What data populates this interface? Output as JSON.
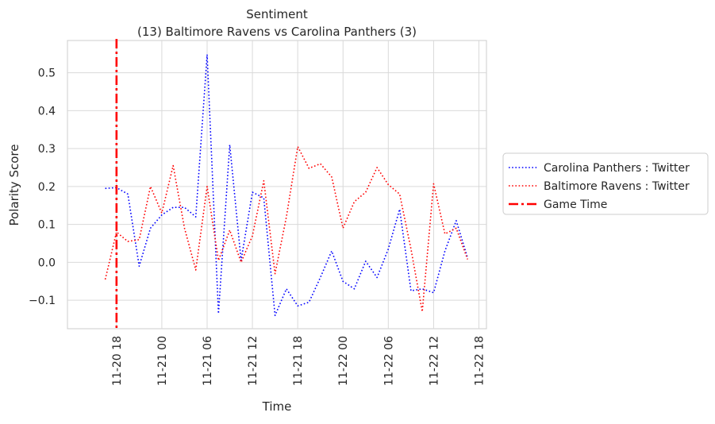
{
  "chart_data": {
    "type": "line",
    "title": "Sentiment",
    "subtitle": "(13) Baltimore Ravens vs Carolina Panthers (3)",
    "xlabel": "Time",
    "ylabel": "Polarity Score",
    "grid": true,
    "legend_position": "right-outside",
    "x_ticks": [
      "11-20 18",
      "11-21 00",
      "11-21 06",
      "11-21 12",
      "11-21 18",
      "11-22 00",
      "11-22 06",
      "11-22 12",
      "11-22 18"
    ],
    "y_ticks": [
      "−0.1",
      "0.0",
      "0.1",
      "0.2",
      "0.3",
      "0.4",
      "0.5"
    ],
    "y_tick_values": [
      -0.1,
      0.0,
      0.1,
      0.2,
      0.3,
      0.4,
      0.5
    ],
    "xlim": [
      "2018-11-20 11:30",
      "2018-11-22 19:00"
    ],
    "ylim": [
      -0.175,
      0.585
    ],
    "series": [
      {
        "name": "Carolina Panthers : Twitter",
        "color": "#0000ff",
        "style": "dotted",
        "points": [
          [
            "2018-11-20 16:30",
            0.195
          ],
          [
            "2018-11-20 18:00",
            0.197
          ],
          [
            "2018-11-20 19:30",
            0.18
          ],
          [
            "2018-11-20 21:00",
            -0.01
          ],
          [
            "2018-11-20 22:30",
            0.09
          ],
          [
            "2018-11-21 00:00",
            0.125
          ],
          [
            "2018-11-21 01:30",
            0.145
          ],
          [
            "2018-11-21 03:00",
            0.145
          ],
          [
            "2018-11-21 04:30",
            0.12
          ],
          [
            "2018-11-21 06:00",
            0.548
          ],
          [
            "2018-11-21 07:30",
            -0.135
          ],
          [
            "2018-11-21 09:00",
            0.31
          ],
          [
            "2018-11-21 10:30",
            0.005
          ],
          [
            "2018-11-21 12:00",
            0.185
          ],
          [
            "2018-11-21 13:30",
            0.17
          ],
          [
            "2018-11-21 15:00",
            -0.14
          ],
          [
            "2018-11-21 16:30",
            -0.07
          ],
          [
            "2018-11-21 18:00",
            -0.115
          ],
          [
            "2018-11-21 19:30",
            -0.105
          ],
          [
            "2018-11-21 21:00",
            -0.04
          ],
          [
            "2018-11-21 22:30",
            0.03
          ],
          [
            "2018-11-22 00:00",
            -0.05
          ],
          [
            "2018-11-22 01:30",
            -0.07
          ],
          [
            "2018-11-22 03:00",
            0.003
          ],
          [
            "2018-11-22 04:30",
            -0.04
          ],
          [
            "2018-11-22 06:00",
            0.035
          ],
          [
            "2018-11-22 07:30",
            0.14
          ],
          [
            "2018-11-22 09:00",
            -0.075
          ],
          [
            "2018-11-22 10:30",
            -0.07
          ],
          [
            "2018-11-22 12:00",
            -0.08
          ],
          [
            "2018-11-22 13:30",
            0.03
          ],
          [
            "2018-11-22 15:00",
            0.11
          ],
          [
            "2018-11-22 16:30",
            0.012
          ]
        ]
      },
      {
        "name": "Baltimore Ravens : Twitter",
        "color": "#ff0000",
        "style": "dotted",
        "points": [
          [
            "2018-11-20 16:30",
            -0.045
          ],
          [
            "2018-11-20 18:00",
            0.08
          ],
          [
            "2018-11-20 19:30",
            0.055
          ],
          [
            "2018-11-20 21:00",
            0.06
          ],
          [
            "2018-11-20 22:30",
            0.2
          ],
          [
            "2018-11-21 00:00",
            0.13
          ],
          [
            "2018-11-21 01:30",
            0.255
          ],
          [
            "2018-11-21 03:00",
            0.09
          ],
          [
            "2018-11-21 04:30",
            -0.02
          ],
          [
            "2018-11-21 06:00",
            0.2
          ],
          [
            "2018-11-21 07:30",
            0.005
          ],
          [
            "2018-11-21 09:00",
            0.085
          ],
          [
            "2018-11-21 10:30",
            0.0
          ],
          [
            "2018-11-21 12:00",
            0.07
          ],
          [
            "2018-11-21 13:30",
            0.215
          ],
          [
            "2018-11-21 15:00",
            -0.03
          ],
          [
            "2018-11-21 16:30",
            0.12
          ],
          [
            "2018-11-21 18:00",
            0.305
          ],
          [
            "2018-11-21 19:30",
            0.248
          ],
          [
            "2018-11-21 21:00",
            0.26
          ],
          [
            "2018-11-21 22:30",
            0.225
          ],
          [
            "2018-11-22 00:00",
            0.09
          ],
          [
            "2018-11-22 01:30",
            0.16
          ],
          [
            "2018-11-22 03:00",
            0.185
          ],
          [
            "2018-11-22 04:30",
            0.25
          ],
          [
            "2018-11-22 06:00",
            0.205
          ],
          [
            "2018-11-22 07:30",
            0.18
          ],
          [
            "2018-11-22 09:00",
            0.035
          ],
          [
            "2018-11-22 10:30",
            -0.13
          ],
          [
            "2018-11-22 12:00",
            0.207
          ],
          [
            "2018-11-22 13:30",
            0.075
          ],
          [
            "2018-11-22 15:00",
            0.09
          ],
          [
            "2018-11-22 16:30",
            0.008
          ]
        ]
      }
    ],
    "game_time": {
      "name": "Game Time",
      "x": "2018-11-20 18:00",
      "color": "#ff0000",
      "style": "dashdot"
    }
  }
}
